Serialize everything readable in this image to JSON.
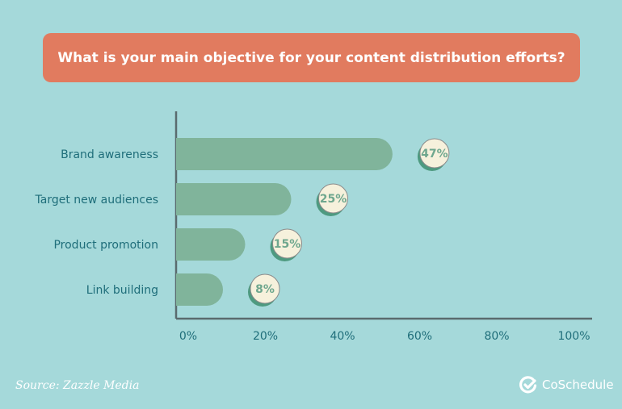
{
  "chart_data": {
    "type": "bar",
    "orientation": "horizontal",
    "title": "What is your main objective for your content distribution efforts?",
    "categories": [
      "Brand awareness",
      "Target new audiences",
      "Product promotion",
      "Link building"
    ],
    "values": [
      47,
      25,
      15,
      8
    ],
    "data_labels": [
      "47%",
      "25%",
      "15%",
      "8%"
    ],
    "xlim": [
      0,
      100
    ],
    "xticks": [
      "0%",
      "20%",
      "40%",
      "60%",
      "80%",
      "100%"
    ],
    "grid": false,
    "colors": {
      "background": "#a5d9da",
      "title_box": "#e17b5f",
      "bar": "#80b49b",
      "text": "#1f6e7a",
      "bubble": "#f6f1dc",
      "bubble_shadow": "#4e9a80"
    }
  },
  "footer": {
    "source": "Source: Zazzle Media",
    "brand": "CoSchedule",
    "brand_icon": "check-badge-icon"
  }
}
